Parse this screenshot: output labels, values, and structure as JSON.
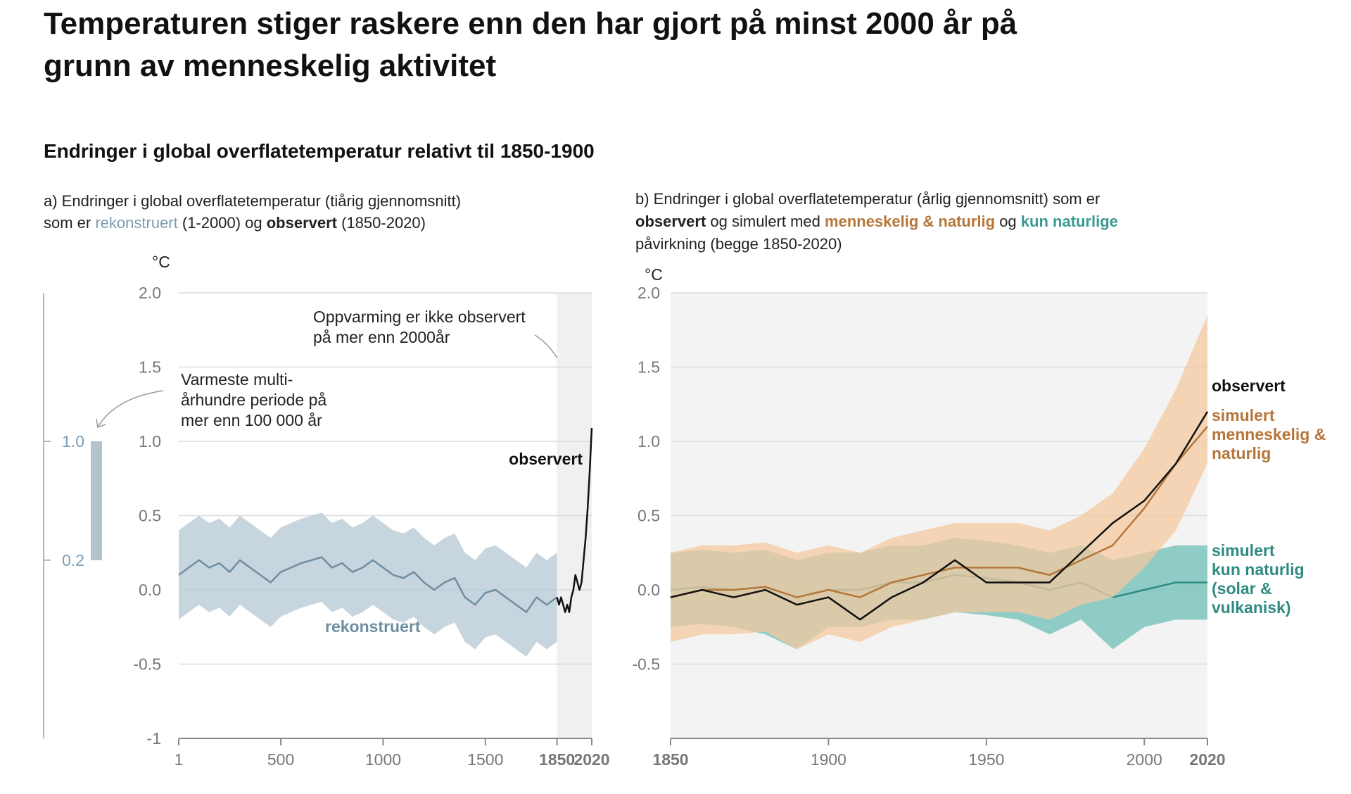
{
  "header": {
    "title": [
      "Temperaturen stiger raskere enn den har gjort på minst 2000 år på",
      "grunn av menneskelig aktivitet"
    ],
    "subtitle": "Endringer i global overflatetemperatur relativt til 1850-1900"
  },
  "chart_data": [
    {
      "type": "line",
      "subtitle": [
        [
          {
            "text": "a) Endringer i global overflatetemperatur (tiårig gjennomsnitt)"
          }
        ],
        [
          {
            "text": "som er "
          },
          {
            "text": "rekonstruert",
            "color": "#7c9db3"
          },
          {
            "text": " (1-2000) og "
          },
          {
            "text": "observert",
            "bold": true
          },
          {
            "text": " (1850-2020)"
          }
        ]
      ],
      "unit": "°C",
      "xlim": [
        1,
        2020
      ],
      "xticks": [
        1,
        500,
        1000,
        1500,
        1850,
        2020
      ],
      "ylim": [
        -1,
        2
      ],
      "yticks": [
        {
          "value": 2,
          "label": "2.0"
        },
        1.5,
        {
          "value": 1,
          "label": "1.0"
        },
        0.5,
        {
          "value": 0,
          "label": "0.0"
        },
        -0.5,
        -1
      ],
      "grid": true,
      "series": [
        {
          "name": "rekonstruert",
          "color": "#6f8ea3",
          "band_color": "#b9cad6",
          "x": [
            1,
            50,
            100,
            150,
            200,
            250,
            300,
            350,
            400,
            450,
            500,
            550,
            600,
            650,
            700,
            750,
            800,
            850,
            900,
            950,
            1000,
            1050,
            1100,
            1150,
            1200,
            1250,
            1300,
            1350,
            1400,
            1450,
            1500,
            1550,
            1600,
            1650,
            1700,
            1750,
            1800,
            1850
          ],
          "values": [
            0.1,
            0.15,
            0.2,
            0.15,
            0.18,
            0.12,
            0.2,
            0.15,
            0.1,
            0.05,
            0.12,
            0.15,
            0.18,
            0.2,
            0.22,
            0.15,
            0.18,
            0.12,
            0.15,
            0.2,
            0.15,
            0.1,
            0.08,
            0.12,
            0.05,
            0.0,
            0.05,
            0.08,
            -0.05,
            -0.1,
            -0.02,
            0.0,
            -0.05,
            -0.1,
            -0.15,
            -0.05,
            -0.1,
            -0.05
          ],
          "lower": [
            -0.2,
            -0.15,
            -0.1,
            -0.15,
            -0.12,
            -0.18,
            -0.1,
            -0.15,
            -0.2,
            -0.25,
            -0.18,
            -0.15,
            -0.12,
            -0.1,
            -0.08,
            -0.15,
            -0.12,
            -0.18,
            -0.15,
            -0.1,
            -0.15,
            -0.2,
            -0.22,
            -0.18,
            -0.25,
            -0.3,
            -0.25,
            -0.22,
            -0.35,
            -0.4,
            -0.32,
            -0.3,
            -0.35,
            -0.4,
            -0.45,
            -0.35,
            -0.4,
            -0.35
          ],
          "upper": [
            0.4,
            0.45,
            0.5,
            0.45,
            0.48,
            0.42,
            0.5,
            0.45,
            0.4,
            0.35,
            0.42,
            0.45,
            0.48,
            0.5,
            0.52,
            0.45,
            0.48,
            0.42,
            0.45,
            0.5,
            0.45,
            0.4,
            0.38,
            0.42,
            0.35,
            0.3,
            0.35,
            0.38,
            0.25,
            0.2,
            0.28,
            0.3,
            0.25,
            0.2,
            0.15,
            0.25,
            0.2,
            0.25
          ]
        },
        {
          "name": "observert",
          "color": "#111111",
          "x": [
            1850,
            1860,
            1870,
            1880,
            1890,
            1900,
            1910,
            1920,
            1930,
            1940,
            1950,
            1960,
            1970,
            1980,
            1990,
            2000,
            2010,
            2020
          ],
          "values": [
            -0.05,
            -0.1,
            -0.05,
            -0.1,
            -0.15,
            -0.1,
            -0.15,
            -0.05,
            0.0,
            0.1,
            0.05,
            0.0,
            0.05,
            0.2,
            0.35,
            0.55,
            0.8,
            1.09
          ]
        }
      ],
      "annotations": [
        [
          "Oppvarming er ikke observert",
          "på mer enn 2000år"
        ],
        [
          "Varmeste multi-",
          "århundre periode på",
          "mer enn 100 000 år"
        ]
      ],
      "warm_period": {
        "range": [
          0.2,
          1
        ],
        "yticks": [
          {
            "value": 1,
            "label": "1.0"
          },
          0.2
        ],
        "color": "#b3c3ce"
      }
    },
    {
      "type": "line",
      "subtitle": [
        [
          {
            "text": "b) Endringer i global overflatetemperatur (årlig gjennomsnitt) som er"
          }
        ],
        [
          {
            "text": "observert",
            "bold": true
          },
          {
            "text": " og simulert med "
          },
          {
            "text": "menneskelig & naturlig",
            "bold": true,
            "color": "#b5763a"
          },
          {
            "text": " og "
          },
          {
            "text": "kun naturlige",
            "bold": true,
            "color": "#3a9a90"
          }
        ],
        [
          {
            "text": "påvirkning (begge 1850-2020)"
          }
        ]
      ],
      "unit": "°C",
      "xlim": [
        1850,
        2020
      ],
      "xticks": [
        1850,
        1900,
        1950,
        2000,
        2020
      ],
      "ylim": [
        -1,
        2
      ],
      "yticks": [
        {
          "value": 2,
          "label": "2.0"
        },
        1.5,
        {
          "value": 1,
          "label": "1.0"
        },
        0.5,
        {
          "value": 0,
          "label": "0.0"
        },
        -0.5
      ],
      "grid": true,
      "series": [
        {
          "name": [
            "simulert",
            "kun naturlig",
            "(solar &",
            "vulkanisk)"
          ],
          "color": "#2e8b82",
          "band_color": "#6fbfb7",
          "x": [
            1850,
            1860,
            1870,
            1880,
            1890,
            1900,
            1910,
            1920,
            1930,
            1940,
            1950,
            1960,
            1970,
            1980,
            1990,
            2000,
            2010,
            2020
          ],
          "values": [
            0.0,
            0.02,
            0.0,
            0.02,
            -0.05,
            0.0,
            0.0,
            0.05,
            0.05,
            0.1,
            0.08,
            0.05,
            0.0,
            0.05,
            -0.05,
            0.0,
            0.05,
            0.05
          ],
          "lower": [
            -0.25,
            -0.23,
            -0.25,
            -0.3,
            -0.4,
            -0.25,
            -0.25,
            -0.2,
            -0.2,
            -0.15,
            -0.17,
            -0.2,
            -0.3,
            -0.2,
            -0.4,
            -0.25,
            -0.2,
            -0.2
          ],
          "upper": [
            0.25,
            0.27,
            0.25,
            0.27,
            0.2,
            0.25,
            0.25,
            0.3,
            0.3,
            0.35,
            0.33,
            0.3,
            0.25,
            0.3,
            0.2,
            0.25,
            0.3,
            0.3
          ]
        },
        {
          "name": [
            "simulert",
            "menneskelig &",
            "naturlig"
          ],
          "color": "#b5763a",
          "band_color": "#f4c9a0",
          "x": [
            1850,
            1860,
            1870,
            1880,
            1890,
            1900,
            1910,
            1920,
            1930,
            1940,
            1950,
            1960,
            1970,
            1980,
            1990,
            2000,
            2010,
            2020
          ],
          "values": [
            -0.05,
            0.0,
            0.0,
            0.02,
            -0.05,
            0.0,
            -0.05,
            0.05,
            0.1,
            0.15,
            0.15,
            0.15,
            0.1,
            0.2,
            0.3,
            0.55,
            0.85,
            1.1
          ],
          "lower": [
            -0.35,
            -0.3,
            -0.3,
            -0.28,
            -0.4,
            -0.3,
            -0.35,
            -0.25,
            -0.2,
            -0.15,
            -0.15,
            -0.15,
            -0.2,
            -0.1,
            -0.05,
            0.15,
            0.4,
            0.85
          ],
          "upper": [
            0.25,
            0.3,
            0.3,
            0.32,
            0.25,
            0.3,
            0.25,
            0.35,
            0.4,
            0.45,
            0.45,
            0.45,
            0.4,
            0.5,
            0.65,
            0.95,
            1.35,
            1.85
          ]
        },
        {
          "name": "observert",
          "color": "#111111",
          "x": [
            1850,
            1860,
            1870,
            1880,
            1890,
            1900,
            1910,
            1920,
            1930,
            1940,
            1950,
            1960,
            1970,
            1980,
            1990,
            2000,
            2010,
            2020
          ],
          "values": [
            -0.05,
            0.0,
            -0.05,
            0.0,
            -0.1,
            -0.05,
            -0.2,
            -0.05,
            0.05,
            0.2,
            0.05,
            0.05,
            0.05,
            0.25,
            0.45,
            0.6,
            0.85,
            1.2
          ]
        }
      ]
    }
  ]
}
